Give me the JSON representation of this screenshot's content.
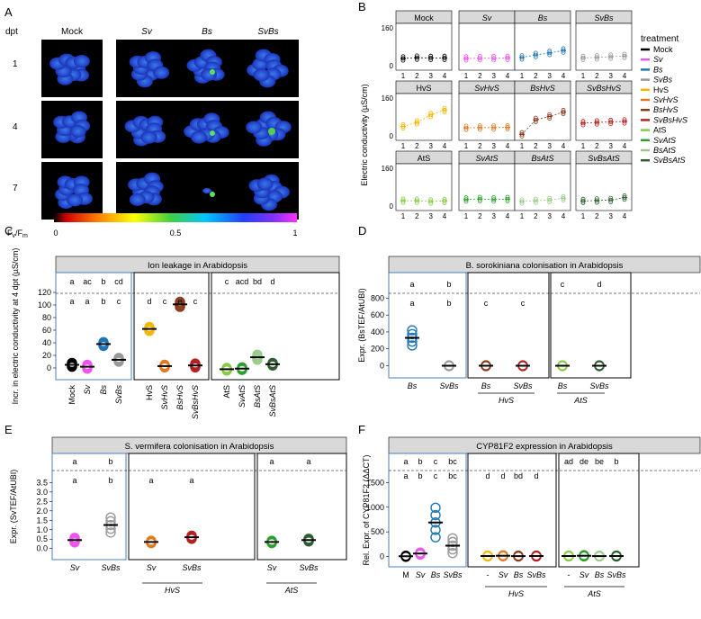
{
  "panels": {
    "A": "A",
    "B": "B",
    "C": "C",
    "D": "D",
    "E": "E",
    "F": "F"
  },
  "panelA": {
    "dpt_label": "dpt",
    "columns": [
      "Mock",
      "Sv",
      "Bs",
      "SvBs"
    ],
    "rows": [
      "1",
      "4",
      "7"
    ],
    "colorbar": {
      "label": "Fv/Fm",
      "min": "0",
      "mid": "0.5",
      "max": "1"
    }
  },
  "chart_data": [
    {
      "id": "B",
      "type": "scatter",
      "ylabel": "Electric conductivity (µS/cm)",
      "xlabel": "dpt",
      "x": [
        1,
        2,
        3,
        4
      ],
      "xticks": [
        "1",
        "2",
        "3",
        "4"
      ],
      "ylim": [
        0,
        160
      ],
      "yticks": [
        "0",
        "40",
        "80",
        "120",
        "160"
      ],
      "panels": [
        {
          "title": "Mock",
          "color": "#000000",
          "means": [
            33,
            36,
            35,
            35
          ]
        },
        {
          "title": "Sv",
          "color": "#ee55ee",
          "means": [
            33,
            34,
            34,
            35
          ]
        },
        {
          "title": "Bs",
          "color": "#1f77b4",
          "means": [
            37,
            47,
            55,
            65
          ]
        },
        {
          "title": "SvBs",
          "color": "#999999",
          "means": [
            35,
            37,
            40,
            43
          ]
        },
        {
          "title": "HvS",
          "color": "#f5b800",
          "means": [
            42,
            58,
            88,
            108
          ]
        },
        {
          "title": "SvHvS",
          "color": "#e07b20",
          "means": [
            36,
            37,
            37,
            38
          ]
        },
        {
          "title": "BsHvS",
          "color": "#8b3a1a",
          "means": [
            10,
            68,
            82,
            100
          ]
        },
        {
          "title": "SvBsHvS",
          "color": "#b22222",
          "means": [
            55,
            58,
            60,
            62
          ]
        },
        {
          "title": "AtS",
          "color": "#88cc44",
          "means": [
            25,
            25,
            22,
            24
          ]
        },
        {
          "title": "SvAtS",
          "color": "#2ca02c",
          "means": [
            30,
            32,
            30,
            32
          ]
        },
        {
          "title": "BsAtS",
          "color": "#99cc88",
          "means": [
            22,
            25,
            28,
            35
          ]
        },
        {
          "title": "SvBsAtS",
          "color": "#2e5e2e",
          "means": [
            24,
            26,
            28,
            38
          ]
        }
      ],
      "legend": {
        "title": "treatment",
        "entries": [
          "Mock",
          "Sv",
          "Bs",
          "SvBs",
          "HvS",
          "SvHvS",
          "BsHvS",
          "SvBsHvS",
          "AtS",
          "SvAtS",
          "BsAtS",
          "SvBsAtS"
        ]
      }
    },
    {
      "id": "C",
      "type": "scatter",
      "title": "Ion leakage in Arabidopsis",
      "ylabel": "Incr. in electric conductivity at 4 dpt (µS/cm)",
      "ylim": [
        -10,
        130
      ],
      "yticks": [
        "0",
        "20",
        "40",
        "60",
        "80",
        "100",
        "120"
      ],
      "categories": [
        "Mock",
        "Sv",
        "Bs",
        "SvBs",
        "HvS",
        "SvHvS",
        "BsHvS",
        "SvBsHvS",
        "AtS",
        "SvAtS",
        "BsAtS",
        "SvBsAtS"
      ],
      "colors": [
        "#000000",
        "#ee55ee",
        "#1f77b4",
        "#999999",
        "#f5b800",
        "#e07b20",
        "#8b3a1a",
        "#b22222",
        "#88cc44",
        "#2ca02c",
        "#99cc88",
        "#2e5e2e"
      ],
      "means": [
        5,
        2,
        38,
        13,
        62,
        3,
        101,
        4,
        -2,
        -1,
        17,
        6
      ],
      "top_letters": [
        "a",
        "ac",
        "b",
        "cd",
        "",
        "",
        "",
        "",
        "c",
        "acd",
        "bd",
        "d"
      ],
      "bottom_letters": [
        "a",
        "a",
        "b",
        "c",
        "d",
        "c",
        "e",
        "c",
        "",
        "",
        "",
        ""
      ]
    },
    {
      "id": "D",
      "type": "scatter",
      "title": "B. sorokiniana colonisation in Arabidopsis",
      "ylabel": "Expr. (BsTEF/AtUBI)",
      "ylim": [
        -80,
        900
      ],
      "yticks": [
        "0",
        "200",
        "400",
        "600",
        "800"
      ],
      "categories": [
        "Bs",
        "SvBs",
        "Bs",
        "SvBs",
        "Bs",
        "SvBs"
      ],
      "groups": [
        "HvS",
        "AtS"
      ],
      "colors": [
        "#1f77b4",
        "#999999",
        "#8b3a1a",
        "#b22222",
        "#88cc44",
        "#2e5e2e"
      ],
      "means": [
        330,
        0,
        0,
        0,
        0,
        0
      ],
      "top_letters": [
        "a",
        "b",
        "",
        "",
        "c",
        "d"
      ],
      "bottom_letters": [
        "a",
        "b",
        "c",
        "c",
        "",
        ""
      ]
    },
    {
      "id": "E",
      "type": "scatter",
      "title": "S. vermifera colonisation in Arabidopsis",
      "ylabel": "Expr. (SvTEF/AtUBI)",
      "ylim": [
        -0.3,
        3.9
      ],
      "yticks": [
        "0.0",
        "0.5",
        "1.0",
        "1.5",
        "2.0",
        "2.5",
        "3.0",
        "3.5"
      ],
      "categories": [
        "Sv",
        "SvBs",
        "Sv",
        "SvBs",
        "Sv",
        "SvBs"
      ],
      "groups": [
        "HvS",
        "AtS"
      ],
      "colors": [
        "#ee55ee",
        "#999999",
        "#e07b20",
        "#b22222",
        "#2ca02c",
        "#2e5e2e"
      ],
      "means": [
        0.45,
        1.25,
        0.35,
        0.6,
        0.35,
        0.45
      ],
      "top_letters": [
        "a",
        "b",
        "",
        "",
        "a",
        "a"
      ],
      "bottom_letters": [
        "a",
        "b",
        "a",
        "a",
        "",
        ""
      ]
    },
    {
      "id": "F",
      "type": "scatter",
      "title": "CYP81F2 expression in Arabidopsis",
      "ylabel": "Rel. Expr. of CYP81F2 (ΔΔCT)",
      "ylim": [
        -100,
        1800
      ],
      "yticks": [
        "0",
        "500",
        "1000",
        "1500"
      ],
      "categories": [
        "M",
        "Sv",
        "Bs",
        "SvBs",
        "-",
        "Sv",
        "Bs",
        "SvBs",
        "-",
        "Sv",
        "Bs",
        "SvBs"
      ],
      "groups": [
        "HvS",
        "AtS"
      ],
      "colors": [
        "#000000",
        "#ee55ee",
        "#1f77b4",
        "#999999",
        "#f5b800",
        "#e07b20",
        "#8b3a1a",
        "#b22222",
        "#88cc44",
        "#2ca02c",
        "#99cc88",
        "#2e5e2e"
      ],
      "means": [
        5,
        60,
        690,
        220,
        10,
        15,
        8,
        10,
        10,
        15,
        8,
        10
      ],
      "top_letters": [
        "a",
        "b",
        "c",
        "bc",
        "",
        "",
        "",
        "",
        "ad",
        "de",
        "be",
        "b"
      ],
      "bottom_letters": [
        "a",
        "b",
        "c",
        "bc",
        "d",
        "d",
        "bd",
        "d",
        "",
        "",
        "",
        ""
      ]
    }
  ]
}
